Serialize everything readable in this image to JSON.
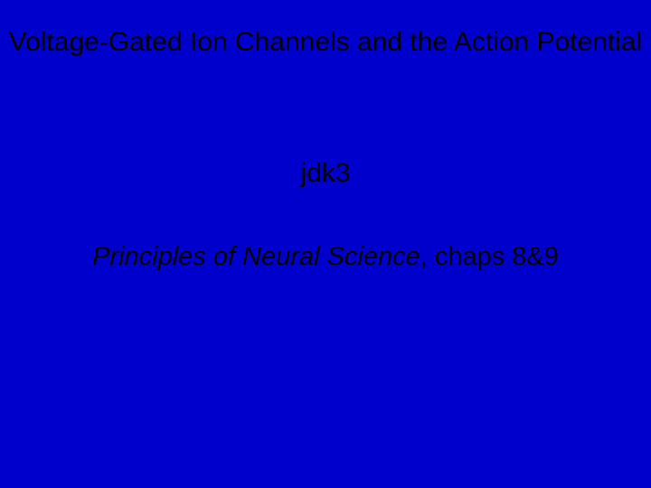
{
  "slide": {
    "background_color": "#0000cc",
    "text_color": "#000000",
    "font_family": "Arial",
    "title": "Voltage-Gated Ion Channels and the Action Potential",
    "title_fontsize": 30,
    "author": "jdk3",
    "author_fontsize": 30,
    "reference_book": "Principles of Neural Science",
    "reference_suffix": ", chaps 8&9",
    "reference_fontsize": 29
  }
}
